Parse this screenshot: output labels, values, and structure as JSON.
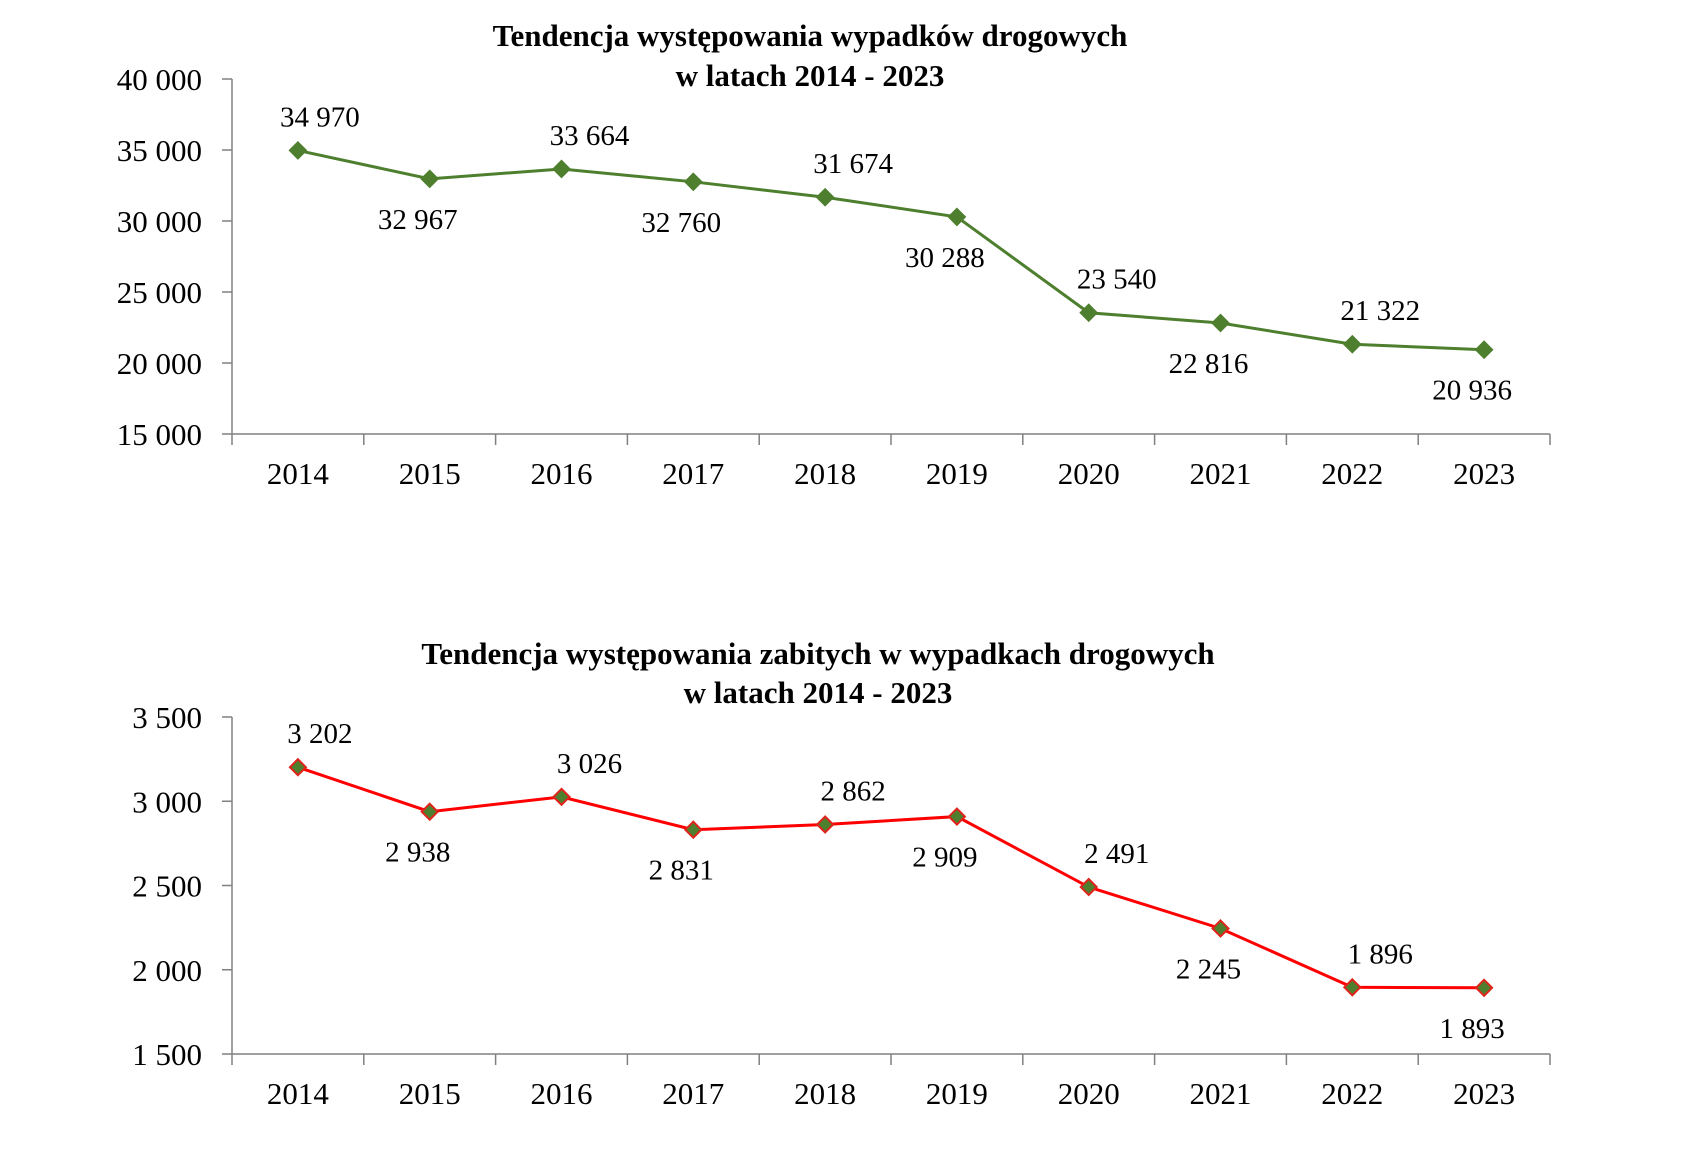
{
  "chart_data": [
    {
      "type": "line",
      "title": "Tendencja występowania wypadków drogowych",
      "subtitle": "w latach 2014 - 2023",
      "xlabel": "",
      "ylabel": "",
      "categories": [
        "2014",
        "2015",
        "2016",
        "2017",
        "2018",
        "2019",
        "2020",
        "2021",
        "2022",
        "2023"
      ],
      "values": [
        34970,
        32967,
        33664,
        32760,
        31674,
        30288,
        23540,
        22816,
        21322,
        20936
      ],
      "data_labels": [
        "34 970",
        "32 967",
        "33 664",
        "32 760",
        "31 674",
        "30 288",
        "23 540",
        "22 816",
        "21 322",
        "20 936"
      ],
      "ylim": [
        15000,
        40000
      ],
      "yticks": [
        15000,
        20000,
        25000,
        30000,
        35000,
        40000
      ],
      "ytick_labels": [
        "15 000",
        "20 000",
        "25 000",
        "30 000",
        "35 000",
        "40 000"
      ],
      "grid": false,
      "legend": "none",
      "line_color": "#4e7f2e",
      "marker_color": "#4e7f2e",
      "marker": "diamond"
    },
    {
      "type": "line",
      "title": "Tendencja występowania zabitych w wypadkach drogowych",
      "subtitle": "w latach 2014 - 2023",
      "xlabel": "",
      "ylabel": "",
      "categories": [
        "2014",
        "2015",
        "2016",
        "2017",
        "2018",
        "2019",
        "2020",
        "2021",
        "2022",
        "2023"
      ],
      "values": [
        3202,
        2938,
        3026,
        2831,
        2862,
        2909,
        2491,
        2245,
        1896,
        1893
      ],
      "data_labels": [
        "3 202",
        "2 938",
        "3 026",
        "2 831",
        "2 862",
        "2 909",
        "2 491",
        "2 245",
        "1 896",
        "1 893"
      ],
      "ylim": [
        1500,
        3500
      ],
      "yticks": [
        1500,
        2000,
        2500,
        3000,
        3500
      ],
      "ytick_labels": [
        "1 500",
        "2 000",
        "2 500",
        "3 000",
        "3 500"
      ],
      "grid": false,
      "legend": "none",
      "line_color": "#ff0000",
      "marker_color": "#4e7f2e",
      "marker_edge_color": "#e0241b",
      "marker": "diamond"
    }
  ]
}
